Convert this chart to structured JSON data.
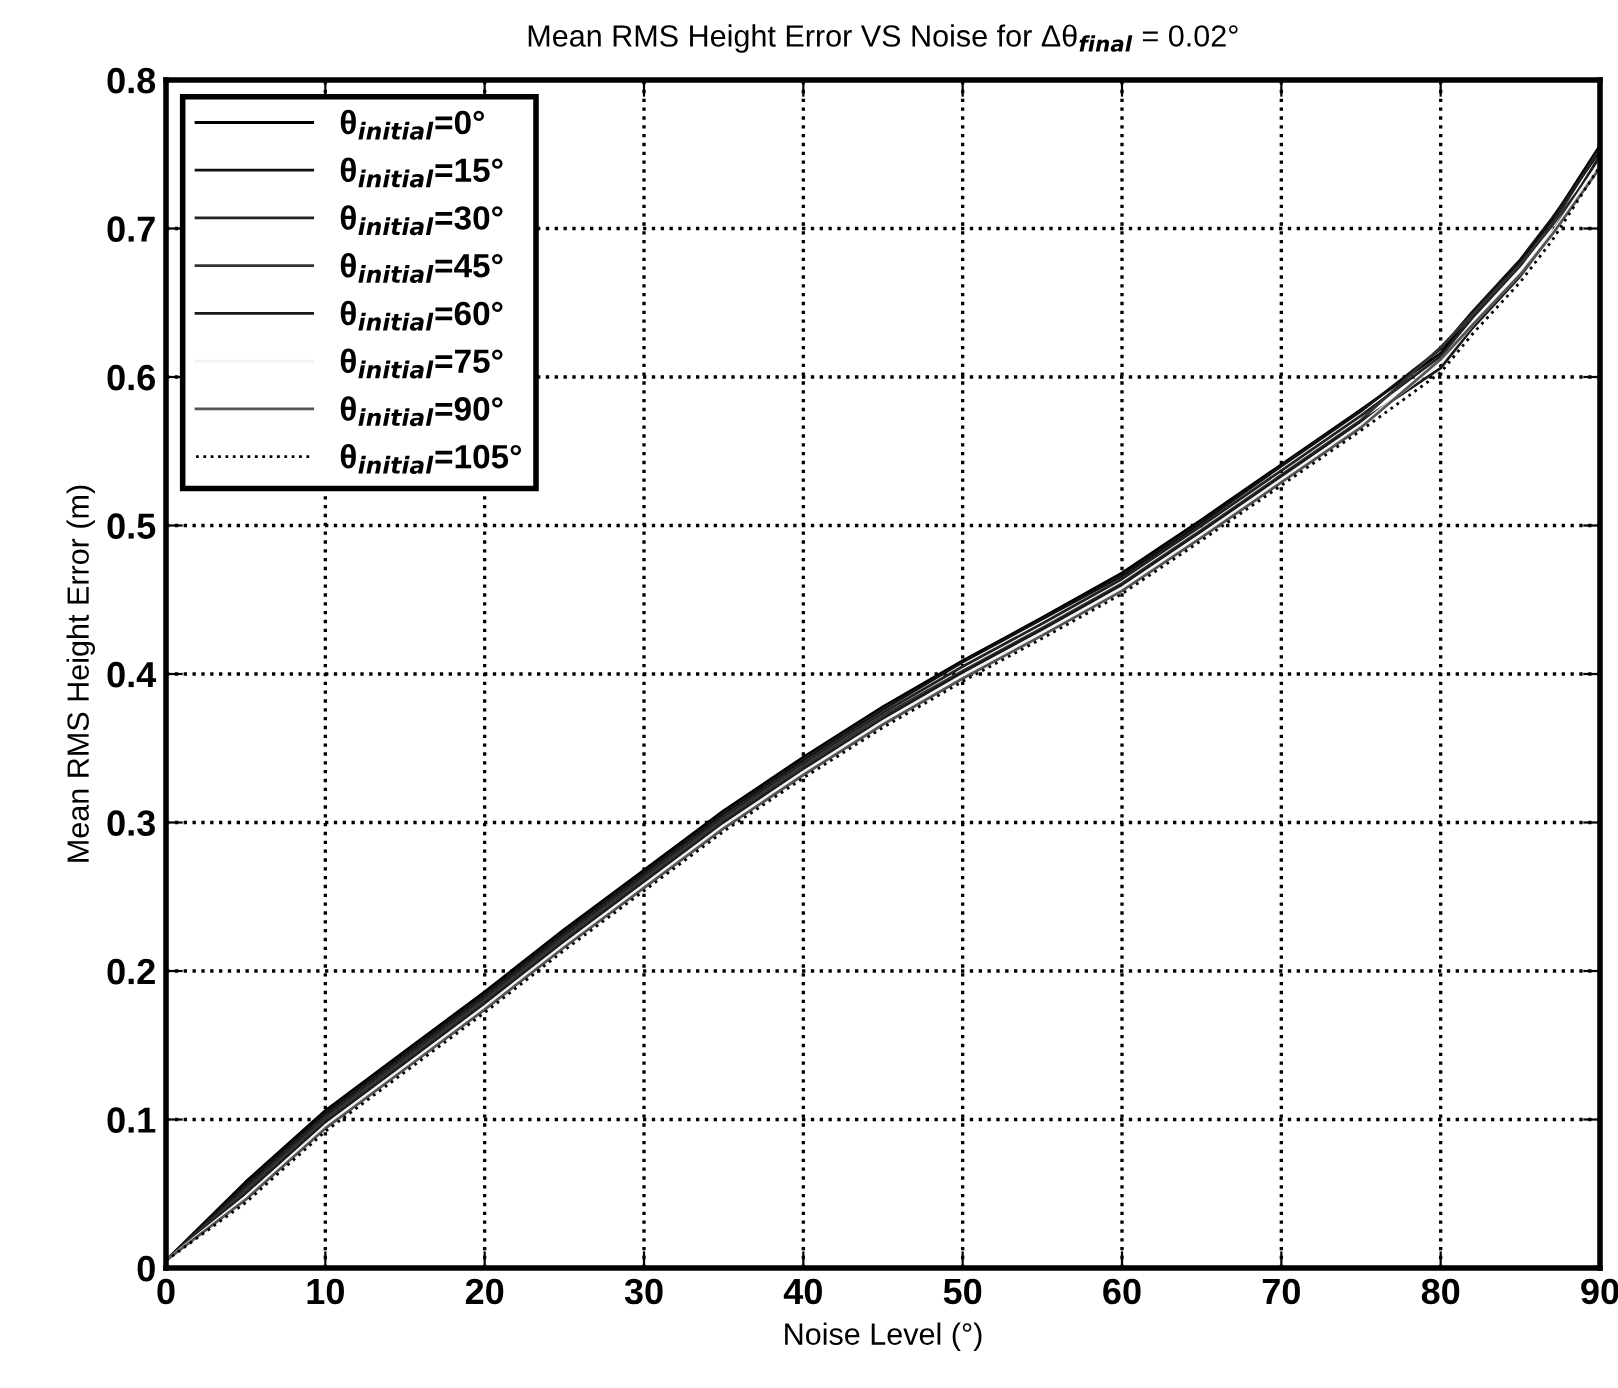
{
  "chart_data": {
    "type": "line",
    "title": "Mean RMS Height Error VS Noise for Δθ$_{final}$ = 0.02°",
    "xlabel": "Noise Level (°)",
    "ylabel": "Mean RMS Height Error (m)",
    "x": [
      0,
      5,
      10,
      15,
      20,
      25,
      30,
      35,
      40,
      45,
      50,
      55,
      60,
      65,
      70,
      75,
      80,
      82,
      85,
      87,
      90
    ],
    "series": [
      {
        "name": "θ$_{initial}$=0°",
        "color": "#000000",
        "values": [
          0.005,
          0.058,
          0.106,
          0.146,
          0.186,
          0.228,
          0.268,
          0.308,
          0.344,
          0.378,
          0.409,
          0.438,
          0.468,
          0.504,
          0.541,
          0.578,
          0.616,
          0.643,
          0.678,
          0.706,
          0.756
        ]
      },
      {
        "name": "θ$_{initial}$=15°",
        "color": "#111111",
        "values": [
          0.005,
          0.056,
          0.104,
          0.144,
          0.184,
          0.226,
          0.266,
          0.306,
          0.342,
          0.376,
          0.408,
          0.437,
          0.466,
          0.502,
          0.54,
          0.577,
          0.619,
          0.644,
          0.679,
          0.707,
          0.752
        ]
      },
      {
        "name": "θ$_{initial}$=30°",
        "color": "#222222",
        "values": [
          0.005,
          0.054,
          0.102,
          0.142,
          0.182,
          0.224,
          0.264,
          0.304,
          0.34,
          0.374,
          0.405,
          0.434,
          0.464,
          0.5,
          0.537,
          0.574,
          0.614,
          0.64,
          0.675,
          0.703,
          0.754
        ]
      },
      {
        "name": "θ$_{initial}$=45°",
        "color": "#333333",
        "values": [
          0.005,
          0.052,
          0.1,
          0.14,
          0.18,
          0.222,
          0.262,
          0.302,
          0.338,
          0.372,
          0.402,
          0.431,
          0.461,
          0.497,
          0.534,
          0.571,
          0.62,
          0.642,
          0.676,
          0.702,
          0.745
        ]
      },
      {
        "name": "θ$_{initial}$=60°",
        "color": "#1a1a1a",
        "values": [
          0.005,
          0.05,
          0.098,
          0.138,
          0.178,
          0.22,
          0.26,
          0.3,
          0.336,
          0.37,
          0.401,
          0.43,
          0.46,
          0.496,
          0.533,
          0.57,
          0.606,
          0.633,
          0.668,
          0.697,
          0.749
        ]
      },
      {
        "name": "θ$_{initial}$=75°",
        "color": "#f2f2f2",
        "values": [
          0.005,
          0.048,
          0.096,
          0.136,
          0.176,
          0.218,
          0.258,
          0.298,
          0.334,
          0.368,
          0.399,
          0.428,
          0.458,
          0.494,
          0.531,
          0.568,
          0.61,
          0.635,
          0.67,
          0.697,
          0.745
        ]
      },
      {
        "name": "θ$_{initial}$=90°",
        "color": "#555555",
        "values": [
          0.005,
          0.046,
          0.094,
          0.134,
          0.174,
          0.216,
          0.256,
          0.296,
          0.332,
          0.366,
          0.397,
          0.426,
          0.456,
          0.492,
          0.529,
          0.566,
          0.612,
          0.635,
          0.669,
          0.696,
          0.741
        ]
      },
      {
        "name": "θ$_{initial}$=105°",
        "color": "#000000",
        "line_style": "dotted",
        "values": [
          0.005,
          0.044,
          0.092,
          0.132,
          0.172,
          0.214,
          0.254,
          0.294,
          0.33,
          0.364,
          0.395,
          0.424,
          0.454,
          0.49,
          0.527,
          0.564,
          0.603,
          0.629,
          0.664,
          0.692,
          0.742
        ]
      }
    ],
    "xlim": [
      0,
      90
    ],
    "xticks": [
      0,
      10,
      20,
      30,
      40,
      50,
      60,
      70,
      80,
      90
    ],
    "ylim": [
      0,
      0.8
    ],
    "yticks": [
      0,
      0.1,
      0.2,
      0.3,
      0.4,
      0.5,
      0.6,
      0.7,
      0.8
    ],
    "grid": true,
    "legend": "top left",
    "line_style": "solid",
    "marker": "none"
  }
}
